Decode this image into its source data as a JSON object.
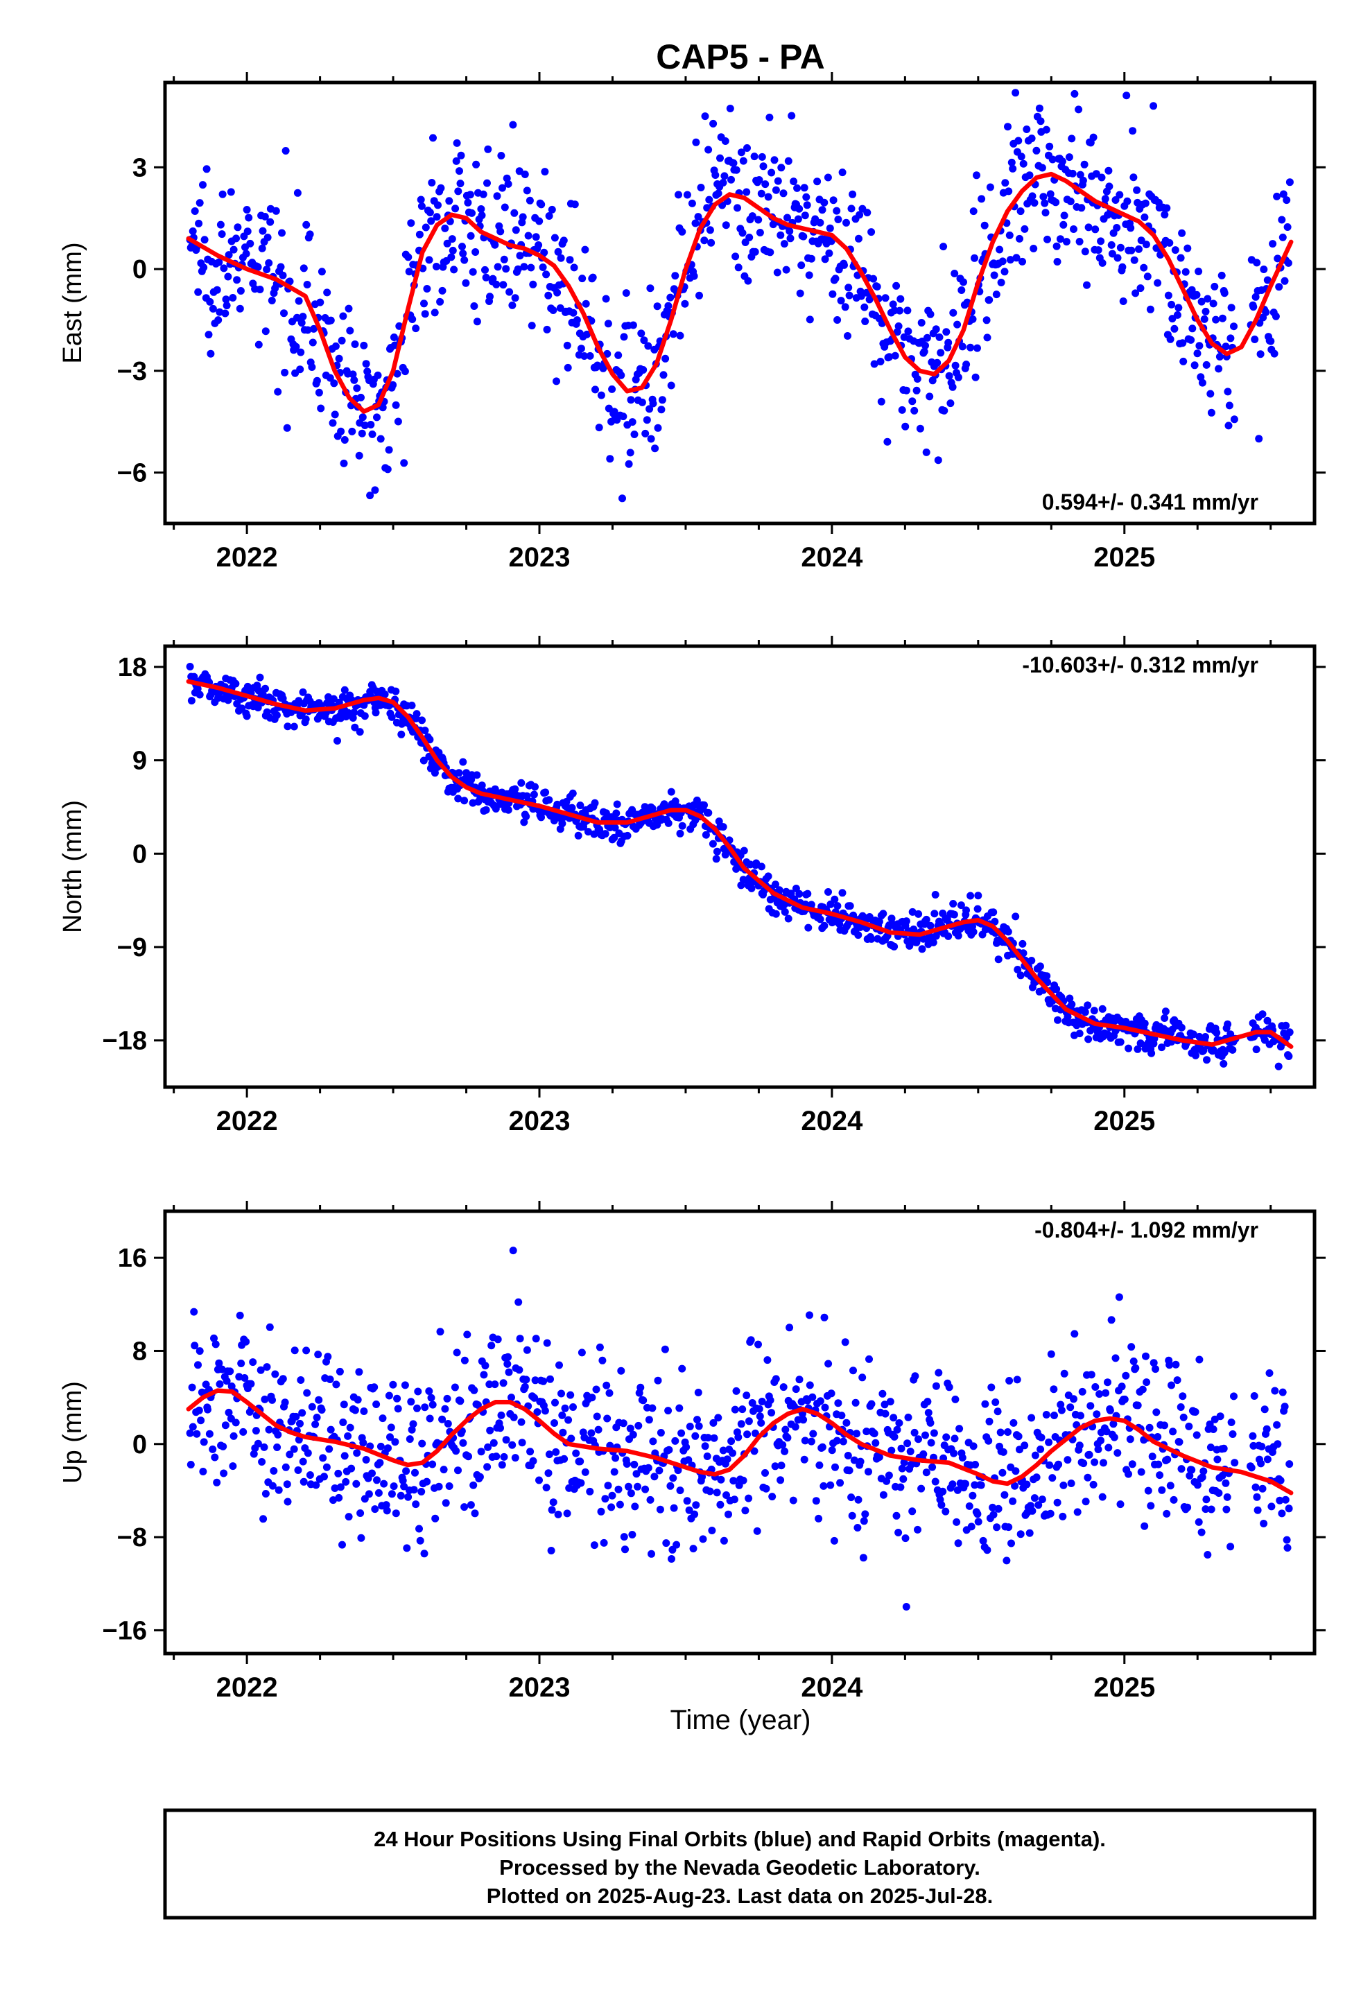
{
  "title": "CAP5 - PA",
  "x_axis_label": "Time (year)",
  "footer": {
    "line1": "24 Hour Positions Using Final Orbits (blue) and Rapid Orbits (magenta).",
    "line2": "Processed by the Nevada Geodetic Laboratory.",
    "line3": "Plotted on 2025-Aug-23. Last data on 2025-Jul-28."
  },
  "colors": {
    "points": "#0000ff",
    "model": "#ff0000",
    "frame": "#000000"
  },
  "chart_data": [
    {
      "type": "scatter",
      "panel": "east",
      "ylabel": "East (mm)",
      "rate_text": "0.594+/- 0.341 mm/yr",
      "xlim": [
        2021.72,
        2025.65
      ],
      "ylim": [
        -7.5,
        5.5
      ],
      "xticks": [
        2022,
        2023,
        2024,
        2025
      ],
      "yticks": [
        -6,
        -3,
        0,
        3
      ],
      "ytick_labels": [
        "−6",
        "−3",
        "0",
        "3"
      ],
      "scatter_sd": 1.2,
      "series": [
        {
          "name": "Final Orbits",
          "role": "points"
        },
        {
          "name": "Model",
          "role": "fit",
          "x": [
            2021.8,
            2021.9,
            2022.0,
            2022.1,
            2022.2,
            2022.25,
            2022.3,
            2022.35,
            2022.4,
            2022.45,
            2022.5,
            2022.55,
            2022.6,
            2022.65,
            2022.7,
            2022.75,
            2022.8,
            2022.85,
            2022.9,
            2022.95,
            2023.0,
            2023.05,
            2023.1,
            2023.15,
            2023.2,
            2023.25,
            2023.3,
            2023.35,
            2023.4,
            2023.45,
            2023.5,
            2023.55,
            2023.6,
            2023.65,
            2023.7,
            2023.75,
            2023.8,
            2023.85,
            2023.9,
            2023.95,
            2024.0,
            2024.05,
            2024.1,
            2024.15,
            2024.2,
            2024.25,
            2024.3,
            2024.35,
            2024.4,
            2024.45,
            2024.5,
            2024.55,
            2024.6,
            2024.65,
            2024.7,
            2024.75,
            2024.8,
            2024.85,
            2024.9,
            2024.95,
            2025.0,
            2025.05,
            2025.1,
            2025.15,
            2025.2,
            2025.25,
            2025.3,
            2025.35,
            2025.4,
            2025.45,
            2025.5,
            2025.57
          ],
          "y": [
            0.9,
            0.4,
            0.0,
            -0.3,
            -0.8,
            -1.8,
            -3.0,
            -3.8,
            -4.2,
            -4.0,
            -3.0,
            -1.2,
            0.5,
            1.3,
            1.6,
            1.5,
            1.1,
            0.9,
            0.7,
            0.6,
            0.4,
            0.1,
            -0.5,
            -1.3,
            -2.3,
            -3.1,
            -3.6,
            -3.5,
            -2.8,
            -1.5,
            0.0,
            1.2,
            1.9,
            2.2,
            2.1,
            1.8,
            1.5,
            1.3,
            1.2,
            1.1,
            1.0,
            0.6,
            -0.1,
            -0.9,
            -1.8,
            -2.6,
            -3.0,
            -3.1,
            -2.7,
            -1.8,
            -0.4,
            0.8,
            1.7,
            2.3,
            2.7,
            2.8,
            2.6,
            2.3,
            2.0,
            1.8,
            1.6,
            1.4,
            1.0,
            0.3,
            -0.6,
            -1.5,
            -2.2,
            -2.5,
            -2.3,
            -1.5,
            -0.5,
            0.8
          ]
        }
      ]
    },
    {
      "type": "scatter",
      "panel": "north",
      "ylabel": "North (mm)",
      "rate_text": "-10.603+/- 0.312 mm/yr",
      "xlim": [
        2021.72,
        2025.65
      ],
      "ylim": [
        -22.5,
        20
      ],
      "xticks": [
        2022,
        2023,
        2024,
        2025
      ],
      "yticks": [
        -18,
        -9,
        0,
        9,
        18
      ],
      "ytick_labels": [
        "−18",
        "−9",
        "0",
        "9",
        "18"
      ],
      "scatter_sd": 0.9,
      "series": [
        {
          "name": "Final Orbits",
          "role": "points"
        },
        {
          "name": "Model",
          "role": "fit",
          "x": [
            2021.8,
            2021.9,
            2022.0,
            2022.1,
            2022.2,
            2022.3,
            2022.4,
            2022.45,
            2022.5,
            2022.55,
            2022.6,
            2022.65,
            2022.7,
            2022.75,
            2022.8,
            2022.9,
            2023.0,
            2023.1,
            2023.2,
            2023.3,
            2023.4,
            2023.45,
            2023.5,
            2023.55,
            2023.6,
            2023.65,
            2023.7,
            2023.8,
            2023.9,
            2024.0,
            2024.1,
            2024.2,
            2024.3,
            2024.4,
            2024.45,
            2024.5,
            2024.55,
            2024.6,
            2024.7,
            2024.8,
            2024.9,
            2025.0,
            2025.1,
            2025.2,
            2025.3,
            2025.4,
            2025.45,
            2025.5,
            2025.57
          ],
          "y": [
            16.6,
            16.0,
            15.2,
            14.4,
            13.8,
            14.0,
            14.8,
            15.0,
            14.6,
            13.2,
            11.2,
            9.0,
            7.4,
            6.4,
            5.8,
            5.2,
            4.6,
            3.8,
            3.0,
            3.0,
            3.8,
            4.2,
            4.2,
            3.6,
            2.4,
            0.6,
            -1.4,
            -3.8,
            -5.2,
            -5.8,
            -6.6,
            -7.6,
            -7.8,
            -7.0,
            -6.6,
            -6.4,
            -7.0,
            -8.4,
            -12.0,
            -15.0,
            -16.4,
            -16.8,
            -17.4,
            -18.0,
            -18.4,
            -17.6,
            -17.2,
            -17.2,
            -18.6
          ]
        }
      ]
    },
    {
      "type": "scatter",
      "panel": "up",
      "ylabel": "Up (mm)",
      "rate_text": "-0.804+/- 1.092 mm/yr",
      "xlim": [
        2021.72,
        2025.65
      ],
      "ylim": [
        -18,
        20
      ],
      "xticks": [
        2022,
        2023,
        2024,
        2025
      ],
      "yticks": [
        -16,
        -8,
        0,
        8,
        16
      ],
      "ytick_labels": [
        "−16",
        "−8",
        "0",
        "8",
        "16"
      ],
      "scatter_sd": 3.8,
      "series": [
        {
          "name": "Final Orbits",
          "role": "points"
        },
        {
          "name": "Model",
          "role": "fit",
          "x": [
            2021.8,
            2021.85,
            2021.9,
            2021.95,
            2022.0,
            2022.05,
            2022.1,
            2022.15,
            2022.2,
            2022.3,
            2022.4,
            2022.5,
            2022.55,
            2022.6,
            2022.65,
            2022.7,
            2022.75,
            2022.8,
            2022.85,
            2022.9,
            2022.95,
            2023.0,
            2023.05,
            2023.1,
            2023.2,
            2023.3,
            2023.4,
            2023.5,
            2023.55,
            2023.6,
            2023.65,
            2023.7,
            2023.75,
            2023.8,
            2023.85,
            2023.9,
            2023.95,
            2024.0,
            2024.05,
            2024.1,
            2024.2,
            2024.3,
            2024.4,
            2024.5,
            2024.55,
            2024.6,
            2024.65,
            2024.7,
            2024.75,
            2024.8,
            2024.85,
            2024.9,
            2024.95,
            2025.0,
            2025.05,
            2025.1,
            2025.2,
            2025.3,
            2025.4,
            2025.5,
            2025.57
          ],
          "y": [
            3.0,
            4.0,
            4.6,
            4.5,
            3.6,
            2.6,
            1.6,
            1.0,
            0.6,
            0.2,
            -0.4,
            -1.4,
            -1.8,
            -1.6,
            -0.6,
            0.8,
            2.0,
            3.0,
            3.6,
            3.6,
            3.0,
            2.0,
            0.9,
            0.0,
            -0.4,
            -0.6,
            -1.2,
            -2.0,
            -2.4,
            -2.6,
            -2.2,
            -1.0,
            0.6,
            1.8,
            2.6,
            3.0,
            2.6,
            1.8,
            0.8,
            0.0,
            -1.0,
            -1.4,
            -1.6,
            -2.6,
            -3.2,
            -3.4,
            -2.8,
            -1.8,
            -0.6,
            0.4,
            1.4,
            2.0,
            2.2,
            2.0,
            1.2,
            0.2,
            -1.0,
            -2.0,
            -2.4,
            -3.2,
            -4.2
          ]
        }
      ]
    }
  ]
}
